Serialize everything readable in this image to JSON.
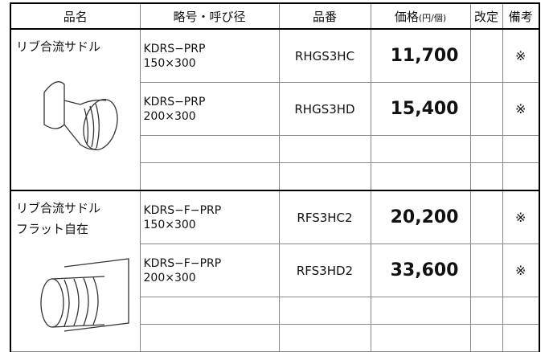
{
  "header": [
    "品名",
    "略号・呼び径",
    "品番",
    "価格",
    "改定",
    "備考"
  ],
  "price_unit": "(円/個)",
  "groups": [
    {
      "name_lines": [
        "リブ合流サドル"
      ],
      "rows": [
        {
          "code": "KDRS−PRP",
          "size": "150×300",
          "part": "RHGS3HC",
          "price": "11,700",
          "note": "※"
        },
        {
          "code": "KDRS−PRP",
          "size": "200×300",
          "part": "RHGS3HD",
          "price": "15,400",
          "note": "※"
        }
      ]
    },
    {
      "name_lines": [
        "リブ合流サドル",
        "フラット自在"
      ],
      "rows": [
        {
          "code": "KDRS−F−PRP",
          "size": "150×300",
          "part": "RFS3HC2",
          "price": "20,200",
          "note": "※"
        },
        {
          "code": "KDRS−F−PRP",
          "size": "200×300",
          "part": "RFS3HD2",
          "price": "33,600",
          "note": "※"
        }
      ]
    }
  ]
}
